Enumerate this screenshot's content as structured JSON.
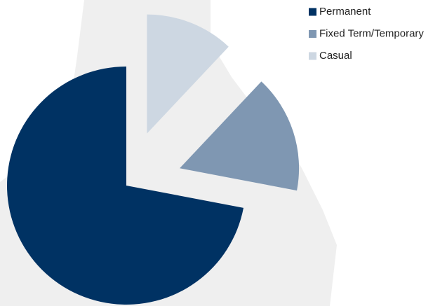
{
  "chart_data": {
    "type": "pie",
    "categories": [
      "Permanent",
      "Fixed Term/Temporary",
      "Casual"
    ],
    "values": [
      72,
      16,
      12
    ],
    "colors": [
      "#003263",
      "#7f97b2",
      "#cdd7e2"
    ],
    "legend": "top-right"
  }
}
